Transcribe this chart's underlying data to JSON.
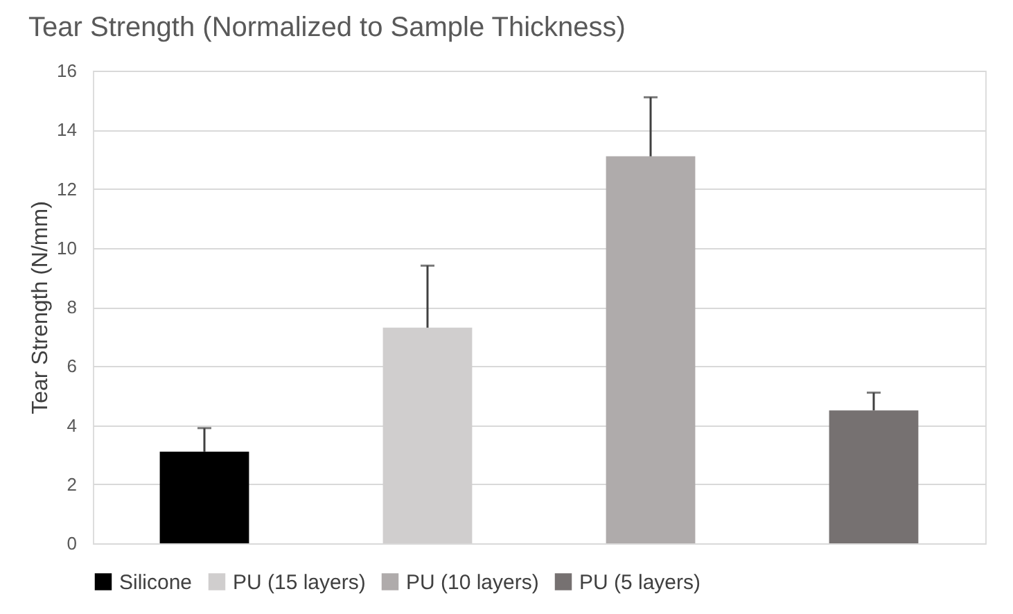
{
  "chart_data": {
    "type": "bar",
    "title": "Tear Strength (Normalized to Sample Thickness)",
    "ylabel": "Tear Strength (N/mm)",
    "categories": [
      null,
      null,
      null,
      null
    ],
    "series": [
      {
        "name": "Silicone",
        "color": "#000000",
        "values": [
          3.1,
          null,
          null,
          null
        ],
        "errors": [
          [
            3.1,
            3.9
          ],
          null,
          null,
          null
        ]
      },
      {
        "name": "PU (15 layers)",
        "color": "#d0cece",
        "values": [
          null,
          7.3,
          null,
          null
        ],
        "errors": [
          null,
          [
            7.3,
            9.4
          ],
          null,
          null
        ]
      },
      {
        "name": "PU (10 layers)",
        "color": "#afabab",
        "values": [
          null,
          null,
          13.1,
          null
        ],
        "errors": [
          null,
          null,
          [
            13.1,
            15.1
          ],
          null
        ]
      },
      {
        "name": "PU (5 layers)",
        "color": "#767171",
        "values": [
          null,
          null,
          null,
          4.5
        ],
        "errors": [
          null,
          null,
          null,
          [
            4.5,
            5.1
          ]
        ]
      }
    ],
    "ylim": [
      0,
      16
    ],
    "yticks": [
      0,
      2,
      4,
      6,
      8,
      10,
      12,
      14,
      16
    ],
    "grid": "y",
    "legend": "bottom"
  }
}
